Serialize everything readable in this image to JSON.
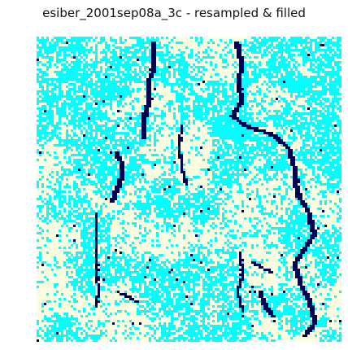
{
  "figure": {
    "title": "esiber_2001sep08a_3c - resampled & filled"
  },
  "palette": {
    "background": "#ffffff",
    "land": "#fffde0",
    "water": "#00ffff",
    "channel": "#000050",
    "title_text": "#111111"
  },
  "classes": [
    "land",
    "water",
    "channel"
  ]
}
